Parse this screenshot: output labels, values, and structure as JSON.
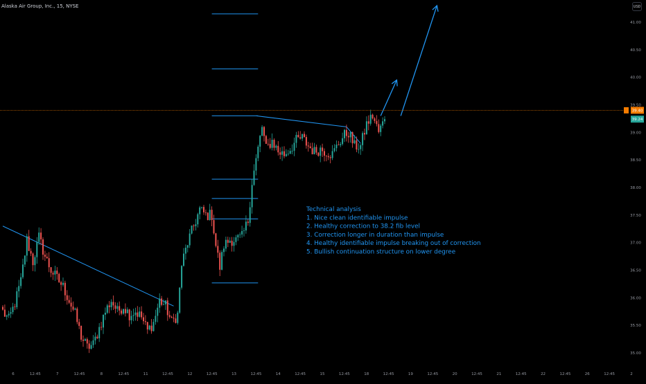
{
  "header": {
    "symbol_title": "Alaska Air Group, Inc., 15, NYSE",
    "currency": "USD"
  },
  "chart_data": {
    "type": "candlestick",
    "symbol": "Alaska Air Group, Inc.",
    "interval": "15",
    "exchange": "NYSE",
    "currency": "USD",
    "ylim": [
      34.9,
      41.3
    ],
    "y_ticks": [
      "35.00",
      "35.50",
      "36.00",
      "36.50",
      "37.00",
      "37.50",
      "38.00",
      "38.50",
      "39.00",
      "39.50",
      "40.00",
      "40.50",
      "41.00"
    ],
    "x_ticks": [
      "6",
      "12:45",
      "7",
      "12:45",
      "8",
      "12:45",
      "11",
      "12:45",
      "12",
      "12:45",
      "13",
      "12:45",
      "14",
      "12:45",
      "15",
      "12:45",
      "18",
      "12:45",
      "19",
      "12:45",
      "20",
      "12:45",
      "21",
      "12:45",
      "22",
      "12:45",
      "26",
      "12:45",
      "2"
    ],
    "current_price": "39.40",
    "last_close_label": "39.24",
    "bull_color": "#26a69a",
    "bear_color": "#ef5350",
    "drawing_color": "#2196f3",
    "price_line_color": "#f57c00",
    "grid": false,
    "annotation": {
      "title": "Technical analysis",
      "lines": [
        "1. Nice clean identifiable impulse",
        "2. Healthy correction to 38.2 fib level",
        "3. Correction longer in duration than impulse",
        "4. Healthy identifiable impulse breaking out of correction",
        "5. Bullish continuation structure on lower degree"
      ]
    },
    "price_anchors": [
      [
        0,
        35.75
      ],
      [
        3,
        35.6
      ],
      [
        6,
        35.9
      ],
      [
        9,
        36.3
      ],
      [
        12,
        37.05
      ],
      [
        15,
        36.65
      ],
      [
        18,
        37.1
      ],
      [
        21,
        36.75
      ],
      [
        24,
        36.5
      ],
      [
        27,
        36.35
      ],
      [
        30,
        36.2
      ],
      [
        33,
        35.95
      ],
      [
        36,
        35.7
      ],
      [
        39,
        35.3
      ],
      [
        42,
        35.1
      ],
      [
        45,
        35.15
      ],
      [
        48,
        35.45
      ],
      [
        51,
        35.75
      ],
      [
        54,
        35.95
      ],
      [
        57,
        35.75
      ],
      [
        60,
        35.85
      ],
      [
        63,
        35.7
      ],
      [
        66,
        35.75
      ],
      [
        69,
        35.65
      ],
      [
        72,
        35.4
      ],
      [
        75,
        35.55
      ],
      [
        78,
        35.95
      ],
      [
        81,
        35.85
      ],
      [
        84,
        35.55
      ],
      [
        87,
        35.7
      ],
      [
        89,
        36.6
      ],
      [
        92,
        37.0
      ],
      [
        95,
        37.3
      ],
      [
        98,
        37.6
      ],
      [
        101,
        37.5
      ],
      [
        104,
        37.5
      ],
      [
        106,
        36.95
      ],
      [
        108,
        36.55
      ],
      [
        110,
        36.95
      ],
      [
        113,
        37.05
      ],
      [
        116,
        37.05
      ],
      [
        119,
        37.1
      ],
      [
        122,
        37.4
      ],
      [
        124,
        38.1
      ],
      [
        127,
        38.7
      ],
      [
        129,
        39.1
      ],
      [
        131,
        38.7
      ],
      [
        134,
        38.85
      ],
      [
        137,
        38.65
      ],
      [
        140,
        38.6
      ],
      [
        143,
        38.7
      ],
      [
        146,
        38.85
      ],
      [
        149,
        38.9
      ],
      [
        152,
        38.75
      ],
      [
        155,
        38.65
      ],
      [
        158,
        38.7
      ],
      [
        161,
        38.65
      ],
      [
        164,
        38.6
      ],
      [
        167,
        38.8
      ],
      [
        170,
        38.95
      ],
      [
        172,
        39.0
      ],
      [
        175,
        38.75
      ],
      [
        178,
        38.75
      ],
      [
        181,
        39.15
      ],
      [
        184,
        39.3
      ],
      [
        187,
        39.0
      ],
      [
        190,
        39.24
      ]
    ],
    "drawings": {
      "trendlines": [
        {
          "from": [
            0,
            37.3
          ],
          "to": [
            85,
            35.85
          ]
        },
        {
          "from": [
            126,
            39.3
          ],
          "to": [
            171,
            39.1
          ]
        },
        {
          "from": [
            171,
            39.1
          ],
          "to": [
            178,
            38.8
          ]
        }
      ],
      "fib_levels": [
        {
          "x1": 104,
          "x2": 127,
          "y": 41.15
        },
        {
          "x1": 104,
          "x2": 127,
          "y": 40.15
        },
        {
          "x1": 104,
          "x2": 127,
          "y": 39.3
        },
        {
          "x1": 104,
          "x2": 127,
          "y": 38.15
        },
        {
          "x1": 104,
          "x2": 127,
          "y": 37.8
        },
        {
          "x1": 104,
          "x2": 127,
          "y": 37.43
        },
        {
          "x1": 104,
          "x2": 127,
          "y": 36.27
        }
      ],
      "projection_arrows": [
        {
          "points": [
            [
              188,
              39.3
            ],
            [
              196,
              39.95
            ]
          ]
        },
        {
          "points": [
            [
              198,
              39.3
            ],
            [
              216,
              41.3
            ]
          ]
        }
      ]
    }
  }
}
